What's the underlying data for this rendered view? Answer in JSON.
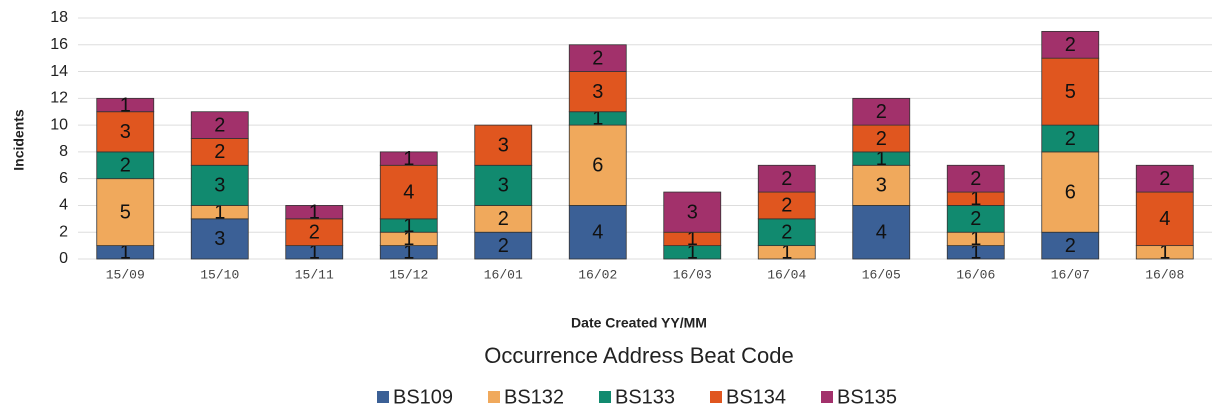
{
  "chart_data": {
    "type": "stacked_bar",
    "title": "Occurrence Address Beat Code",
    "xlabel": "Date Created YY/MM",
    "ylabel": "Incidents",
    "categories": [
      "15/09",
      "15/10",
      "15/11",
      "15/12",
      "16/01",
      "16/02",
      "16/03",
      "16/04",
      "16/05",
      "16/06",
      "16/07",
      "16/08"
    ],
    "series": [
      {
        "name": "BS109",
        "color": "#3b6096",
        "values": [
          1,
          3,
          1,
          1,
          2,
          4,
          null,
          null,
          4,
          1,
          2,
          null
        ]
      },
      {
        "name": "BS132",
        "color": "#f0a95c",
        "values": [
          5,
          1,
          null,
          1,
          2,
          6,
          null,
          1,
          3,
          1,
          6,
          1
        ]
      },
      {
        "name": "BS133",
        "color": "#118a6f",
        "values": [
          2,
          3,
          null,
          1,
          3,
          1,
          1,
          2,
          1,
          2,
          2,
          null
        ]
      },
      {
        "name": "BS134",
        "color": "#e0561f",
        "values": [
          3,
          2,
          2,
          4,
          3,
          3,
          1,
          2,
          2,
          1,
          5,
          4
        ]
      },
      {
        "name": "BS135",
        "color": "#a2316b",
        "values": [
          1,
          2,
          1,
          1,
          null,
          2,
          3,
          2,
          2,
          2,
          2,
          2
        ]
      }
    ],
    "ylim": [
      0,
      18
    ],
    "yticks": [
      0,
      2,
      4,
      6,
      8,
      10,
      12,
      14,
      16,
      18
    ],
    "grid": true
  }
}
